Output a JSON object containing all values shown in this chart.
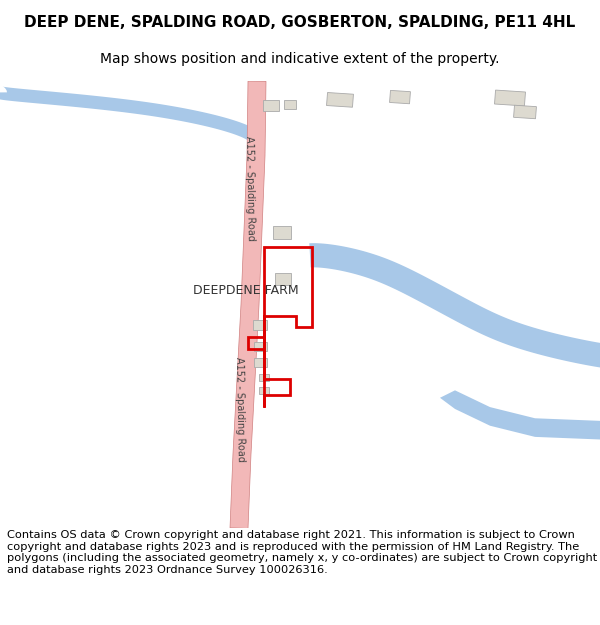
{
  "title": "DEEP DENE, SPALDING ROAD, GOSBERTON, SPALDING, PE11 4HL",
  "subtitle": "Map shows position and indicative extent of the property.",
  "footer": "Contains OS data © Crown copyright and database right 2021. This information is subject to Crown copyright and database rights 2023 and is reproduced with the permission of HM Land Registry. The polygons (including the associated geometry, namely x, y co-ordinates) are subject to Crown copyright and database rights 2023 Ordnance Survey 100026316.",
  "background_color": "#ffffff",
  "map_bg": "#ffffff",
  "road_color": "#f2b8b8",
  "road_border_color": "#d08080",
  "river_color": "#a8c8e8",
  "plot_outline_color": "#dd0000",
  "building_color": "#dddad0",
  "building_border": "#aaaaaa",
  "road_label": "A152 - Spalding Road",
  "farm_label": "DEEPDENE FARM",
  "title_fontsize": 11,
  "subtitle_fontsize": 10,
  "footer_fontsize": 8.2,
  "label_fontsize": 7
}
